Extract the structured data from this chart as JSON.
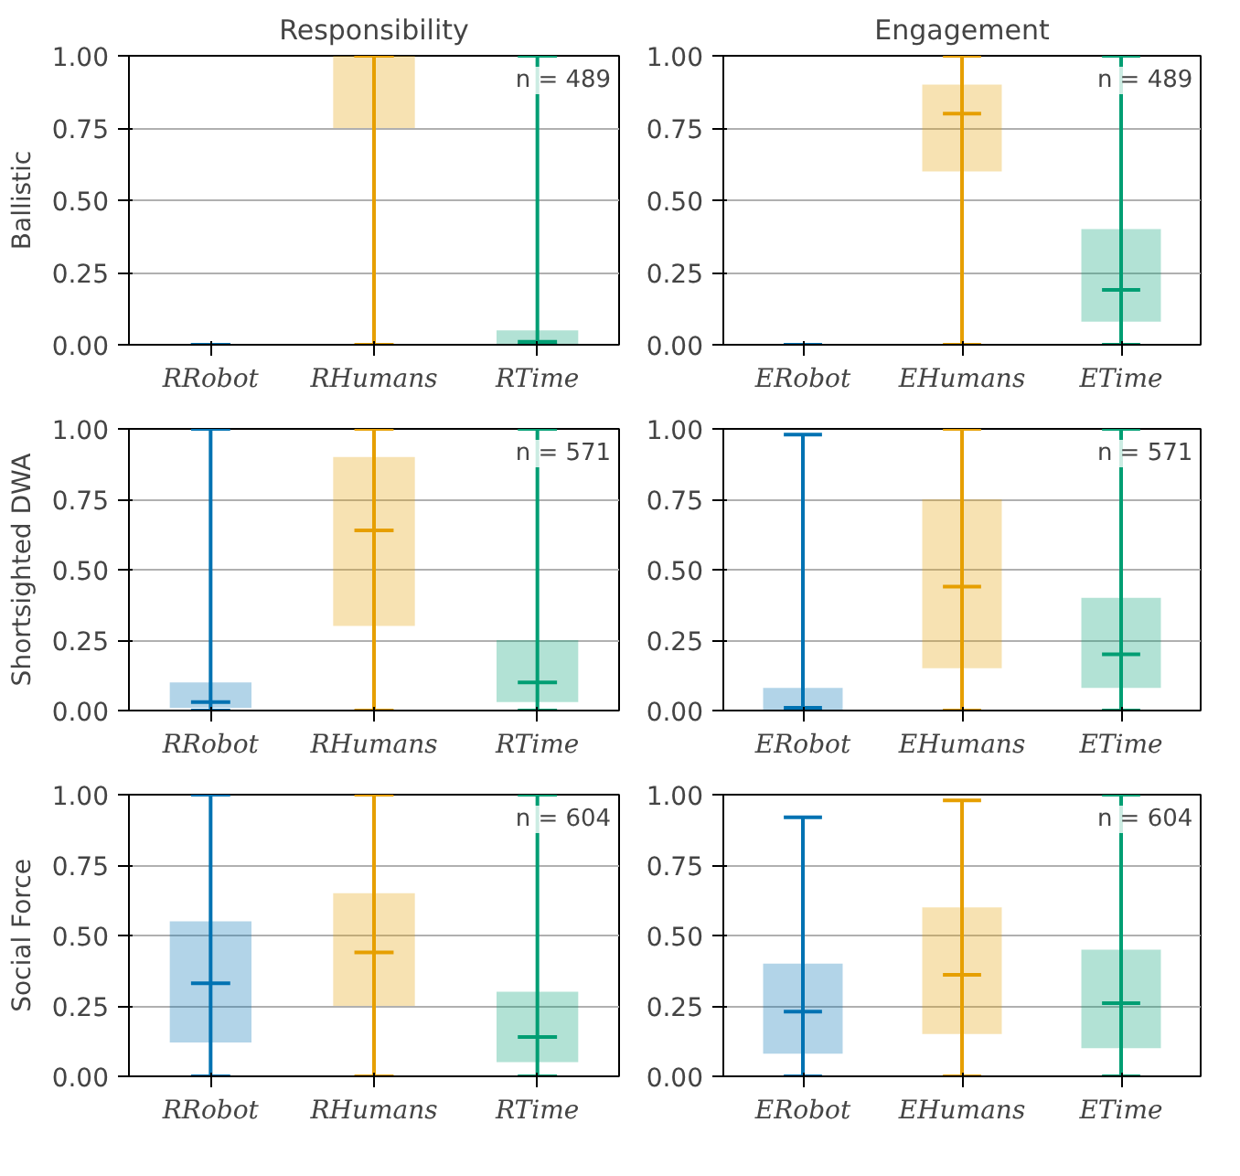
{
  "chart_data": [
    {
      "type": "box",
      "title": "Responsibility",
      "ylabel": "Ballistic",
      "categories": [
        "RRobot",
        "RHumans",
        "RTime"
      ],
      "colors": [
        "#0072b2",
        "#e69f00",
        "#009e73"
      ],
      "ylim": [
        0,
        1
      ],
      "yticks": [
        {
          "value": 0,
          "label": "0.00"
        },
        {
          "value": 0.25,
          "label": "0.25"
        },
        {
          "value": 0.5,
          "label": "0.50"
        },
        {
          "value": 0.75,
          "label": "0.75"
        },
        {
          "value": 1,
          "label": "1.00"
        }
      ],
      "grid": "y",
      "annotations": [
        "n = 489"
      ],
      "boxes": [
        {
          "low": 0,
          "q1": 0,
          "median": 0,
          "q3": 0,
          "high": 0
        },
        {
          "low": 0,
          "q1": 0.75,
          "median": 1,
          "q3": 1,
          "high": 1
        },
        {
          "low": 0,
          "q1": 0,
          "median": 0.01,
          "q3": 0.05,
          "high": 1
        }
      ]
    },
    {
      "type": "box",
      "title": "Engagement",
      "categories": [
        "ERobot",
        "EHumans",
        "ETime"
      ],
      "colors": [
        "#0072b2",
        "#e69f00",
        "#009e73"
      ],
      "ylim": [
        0,
        1
      ],
      "yticks": [
        {
          "value": 0,
          "label": "0.00"
        },
        {
          "value": 0.25,
          "label": "0.25"
        },
        {
          "value": 0.5,
          "label": "0.50"
        },
        {
          "value": 0.75,
          "label": "0.75"
        },
        {
          "value": 1,
          "label": "1.00"
        }
      ],
      "grid": "y",
      "annotations": [
        "n = 489"
      ],
      "boxes": [
        {
          "low": 0,
          "q1": 0,
          "median": 0,
          "q3": 0,
          "high": 0
        },
        {
          "low": 0,
          "q1": 0.6,
          "median": 0.8,
          "q3": 0.9,
          "high": 1
        },
        {
          "low": 0,
          "q1": 0.08,
          "median": 0.19,
          "q3": 0.4,
          "high": 1
        }
      ]
    },
    {
      "type": "box",
      "ylabel": "Shortsighted DWA",
      "categories": [
        "RRobot",
        "RHumans",
        "RTime"
      ],
      "colors": [
        "#0072b2",
        "#e69f00",
        "#009e73"
      ],
      "ylim": [
        0,
        1
      ],
      "yticks": [
        {
          "value": 0,
          "label": "0.00"
        },
        {
          "value": 0.25,
          "label": "0.25"
        },
        {
          "value": 0.5,
          "label": "0.50"
        },
        {
          "value": 0.75,
          "label": "0.75"
        },
        {
          "value": 1,
          "label": "1.00"
        }
      ],
      "grid": "y",
      "annotations": [
        "n = 571"
      ],
      "boxes": [
        {
          "low": 0,
          "q1": 0.01,
          "median": 0.03,
          "q3": 0.1,
          "high": 1
        },
        {
          "low": 0,
          "q1": 0.3,
          "median": 0.64,
          "q3": 0.9,
          "high": 1
        },
        {
          "low": 0,
          "q1": 0.03,
          "median": 0.1,
          "q3": 0.25,
          "high": 1
        }
      ]
    },
    {
      "type": "box",
      "categories": [
        "ERobot",
        "EHumans",
        "ETime"
      ],
      "colors": [
        "#0072b2",
        "#e69f00",
        "#009e73"
      ],
      "ylim": [
        0,
        1
      ],
      "yticks": [
        {
          "value": 0,
          "label": "0.00"
        },
        {
          "value": 0.25,
          "label": "0.25"
        },
        {
          "value": 0.5,
          "label": "0.50"
        },
        {
          "value": 0.75,
          "label": "0.75"
        },
        {
          "value": 1,
          "label": "1.00"
        }
      ],
      "grid": "y",
      "annotations": [
        "n = 571"
      ],
      "boxes": [
        {
          "low": 0,
          "q1": 0,
          "median": 0.01,
          "q3": 0.08,
          "high": 0.98
        },
        {
          "low": 0,
          "q1": 0.15,
          "median": 0.44,
          "q3": 0.75,
          "high": 1
        },
        {
          "low": 0,
          "q1": 0.08,
          "median": 0.2,
          "q3": 0.4,
          "high": 1
        }
      ]
    },
    {
      "type": "box",
      "ylabel": "Social Force",
      "categories": [
        "RRobot",
        "RHumans",
        "RTime"
      ],
      "colors": [
        "#0072b2",
        "#e69f00",
        "#009e73"
      ],
      "ylim": [
        0,
        1
      ],
      "yticks": [
        {
          "value": 0,
          "label": "0.00"
        },
        {
          "value": 0.25,
          "label": "0.25"
        },
        {
          "value": 0.5,
          "label": "0.50"
        },
        {
          "value": 0.75,
          "label": "0.75"
        },
        {
          "value": 1,
          "label": "1.00"
        }
      ],
      "grid": "y",
      "annotations": [
        "n = 604"
      ],
      "boxes": [
        {
          "low": 0,
          "q1": 0.12,
          "median": 0.33,
          "q3": 0.55,
          "high": 1
        },
        {
          "low": 0,
          "q1": 0.25,
          "median": 0.44,
          "q3": 0.65,
          "high": 1
        },
        {
          "low": 0,
          "q1": 0.05,
          "median": 0.14,
          "q3": 0.3,
          "high": 1
        }
      ]
    },
    {
      "type": "box",
      "categories": [
        "ERobot",
        "EHumans",
        "ETime"
      ],
      "colors": [
        "#0072b2",
        "#e69f00",
        "#009e73"
      ],
      "ylim": [
        0,
        1
      ],
      "yticks": [
        {
          "value": 0,
          "label": "0.00"
        },
        {
          "value": 0.25,
          "label": "0.25"
        },
        {
          "value": 0.5,
          "label": "0.50"
        },
        {
          "value": 0.75,
          "label": "0.75"
        },
        {
          "value": 1,
          "label": "1.00"
        }
      ],
      "grid": "y",
      "annotations": [
        "n = 604"
      ],
      "boxes": [
        {
          "low": 0,
          "q1": 0.08,
          "median": 0.23,
          "q3": 0.4,
          "high": 0.92
        },
        {
          "low": 0,
          "q1": 0.15,
          "median": 0.36,
          "q3": 0.6,
          "high": 0.98
        },
        {
          "low": 0,
          "q1": 0.1,
          "median": 0.26,
          "q3": 0.45,
          "high": 1
        }
      ]
    }
  ]
}
